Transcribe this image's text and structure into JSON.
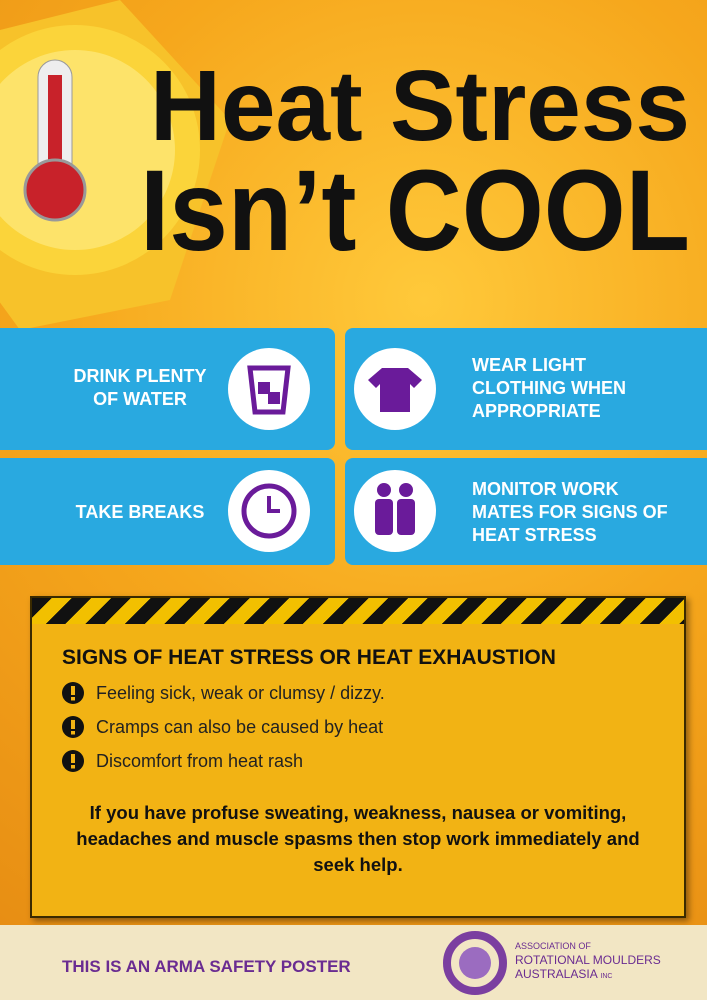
{
  "header": {
    "title_line1": "Heat Stress",
    "title_line2": "Isn’t COOL"
  },
  "tips": [
    {
      "text": "DRINK PLENTY OF WATER"
    },
    {
      "text": "WEAR LIGHT CLOTHING WHEN APPROPRIATE"
    },
    {
      "text": "TAKE BREAKS"
    },
    {
      "text": "MONITOR WORK MATES FOR SIGNS OF HEAT STRESS"
    }
  ],
  "signs": {
    "heading": "SIGNS OF HEAT STRESS OR HEAT EXHAUSTION",
    "items": [
      "Feeling sick, weak or clumsy / dizzy.",
      "Cramps can also be caused by heat",
      "Discomfort from heat rash"
    ],
    "advice": "If you have profuse sweating, weakness, nausea or vomiting, headaches and muscle spasms then stop work immediately and seek help."
  },
  "footer": {
    "text": "THIS IS AN ARMA SAFETY POSTER",
    "logo_line1": "ASSOCIATION OF",
    "logo_line2": "ROTATIONAL MOULDERS",
    "logo_line3": "AUSTRALASIA",
    "logo_suffix": "INC"
  }
}
